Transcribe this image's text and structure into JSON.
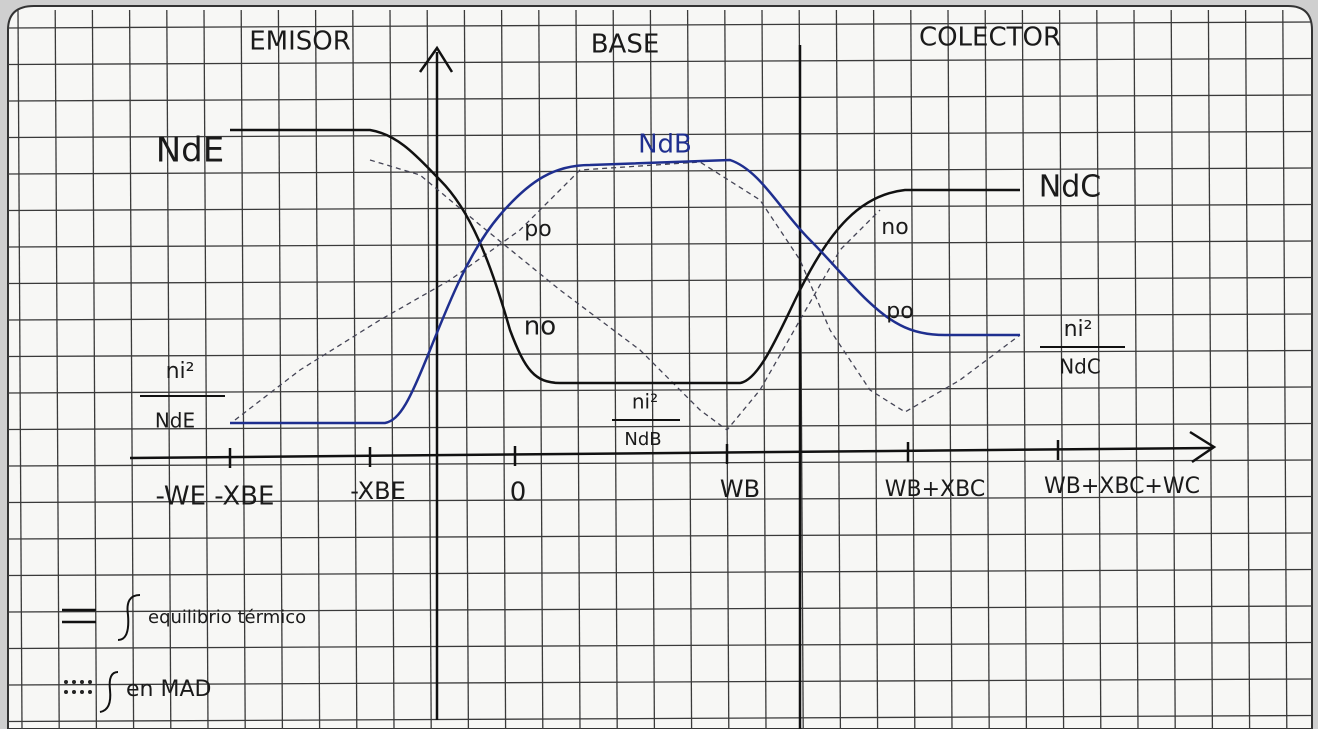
{
  "sections": [
    "EMISOR",
    "BASE",
    "COLECTOR"
  ],
  "curve_labels": {
    "nde": "NdE",
    "ndb": "NdB",
    "ndc": "NdC",
    "po_base": "po",
    "no_base": "no",
    "no_collector": "no",
    "po_collector": "po"
  },
  "fractions": [
    {
      "numerator": "ni²",
      "denominator": "NdE"
    },
    {
      "numerator": "ni²",
      "denominator": "NdB"
    },
    {
      "numerator": "ni²",
      "denominator": "NdC"
    }
  ],
  "axis_labels": [
    "-WE -XBE",
    "-XBE",
    "0",
    "WB",
    "WB+XBC",
    "WB+XBC+WC"
  ],
  "legend": [
    "equilibrio térmico",
    "en MAD"
  ]
}
